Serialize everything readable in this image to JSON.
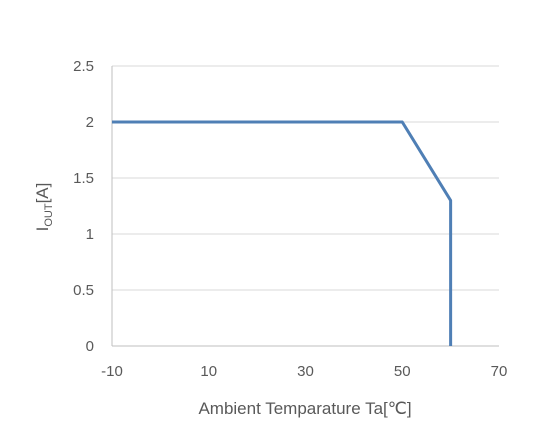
{
  "chart_data": {
    "type": "line",
    "title": "",
    "xlabel": "Ambient Temparature Ta[℃]",
    "ylabel": {
      "main": "I",
      "sub": "OUT",
      "unit": "[A]"
    },
    "xlim": [
      -10,
      70
    ],
    "ylim": [
      0,
      2.5
    ],
    "x_ticks": [
      -10,
      10,
      30,
      50,
      70
    ],
    "x_tick_labels": [
      "-10",
      "10",
      "30",
      "50",
      "70"
    ],
    "y_ticks": [
      0,
      0.5,
      1,
      1.5,
      2,
      2.5
    ],
    "y_tick_labels": [
      "0",
      "0.5",
      "1",
      "1.5",
      "2",
      "2.5"
    ],
    "grid": {
      "horizontal": true,
      "vertical": false
    },
    "legend": "none",
    "series": [
      {
        "color": "#4f7fb5",
        "x": [
          -10,
          50,
          60,
          60
        ],
        "y": [
          2,
          2,
          1.3,
          0
        ]
      }
    ]
  }
}
